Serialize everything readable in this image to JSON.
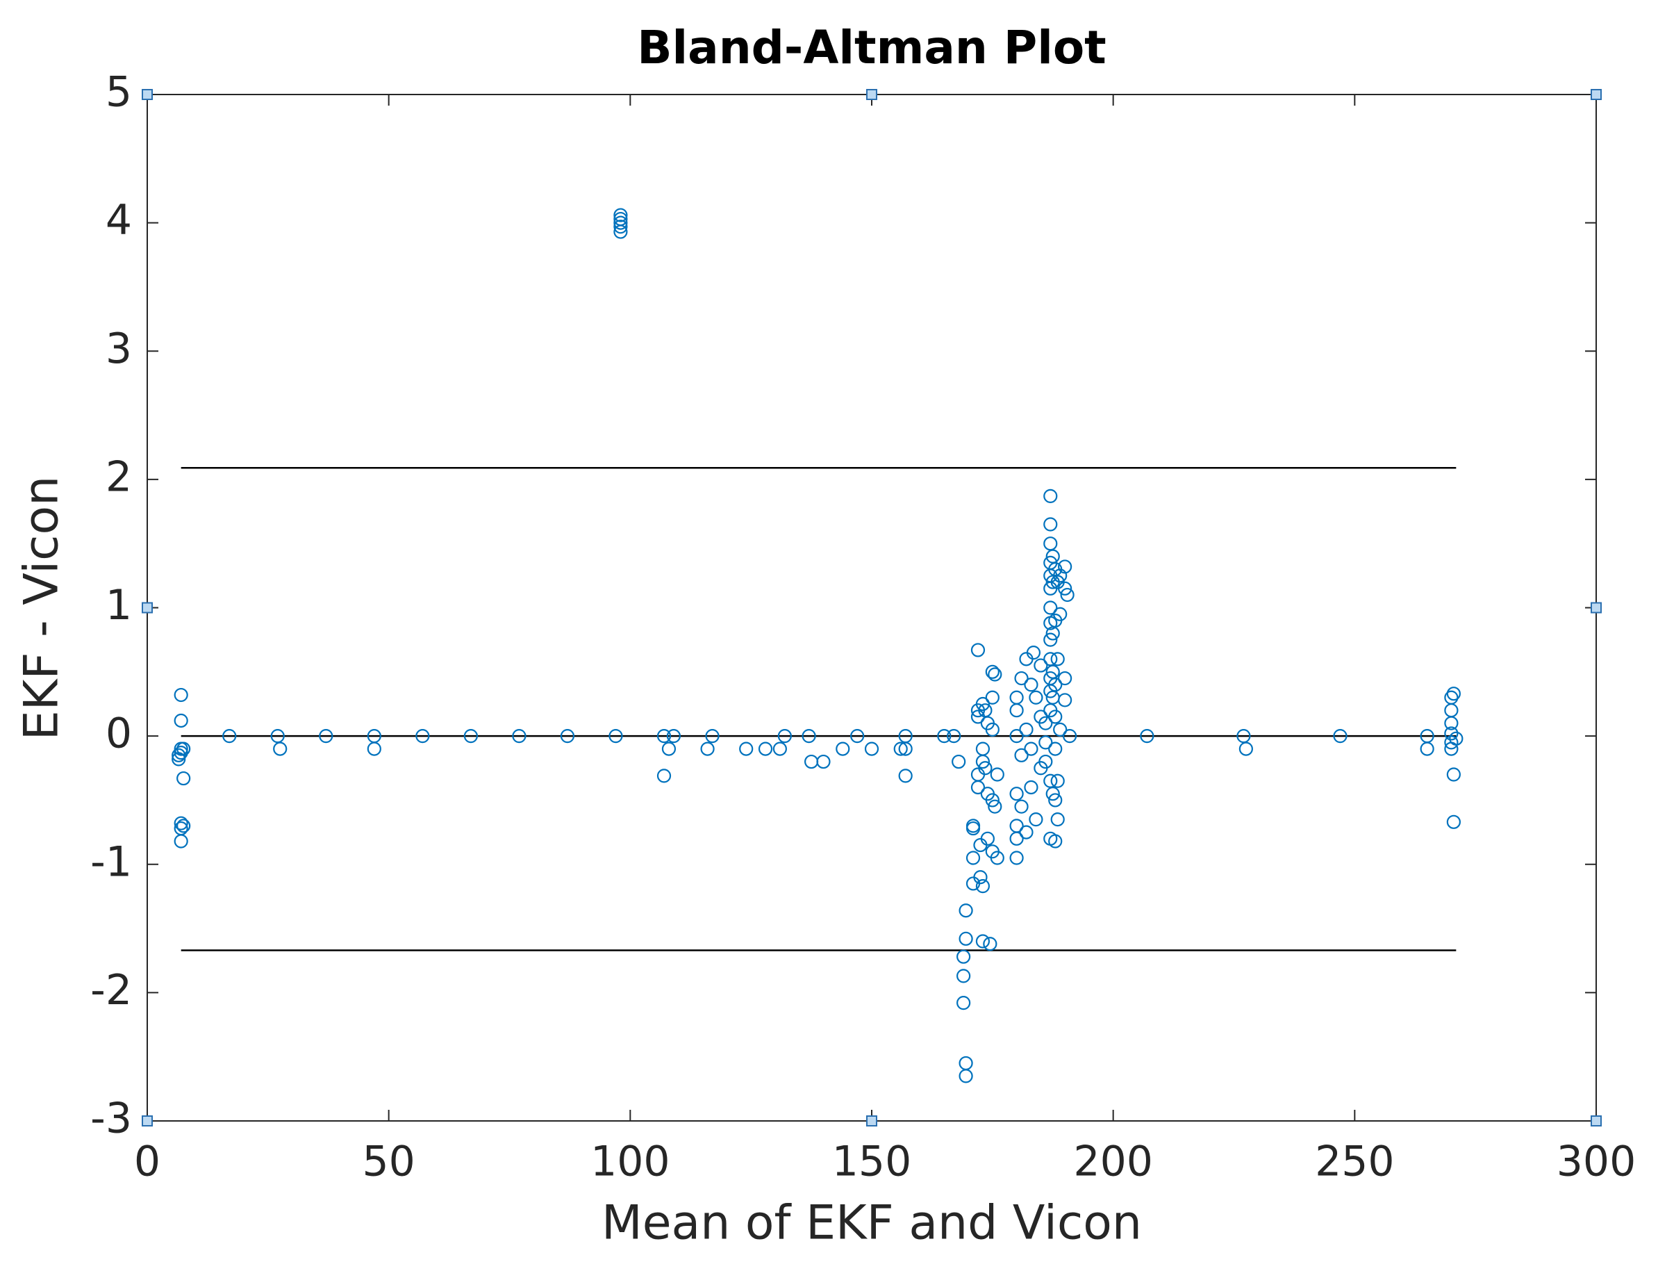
{
  "chart_data": {
    "type": "scatter",
    "title": "Bland-Altman Plot",
    "x_label": "Mean of EKF and Vicon",
    "y_label": "EKF - Vicon",
    "xlim": [
      0,
      300
    ],
    "ylim": [
      -3,
      5
    ],
    "xticks": [
      0,
      50,
      100,
      150,
      200,
      250,
      300
    ],
    "yticks": [
      -3,
      -2,
      -1,
      0,
      1,
      2,
      3,
      4,
      5
    ],
    "color": "#0072bd",
    "x": [
      7,
      7,
      7,
      7,
      6.5,
      6.5,
      7.5,
      7.5,
      7,
      7.5,
      7,
      7,
      17,
      27,
      27.5,
      37,
      47,
      47,
      57,
      67,
      77,
      87,
      97,
      98,
      98,
      98,
      98,
      98,
      107,
      107,
      108,
      109,
      116,
      117,
      124,
      128,
      131,
      132,
      137,
      137.5,
      140,
      144,
      147,
      150,
      156,
      157,
      157,
      157,
      165,
      167,
      168,
      169,
      169,
      169,
      169.5,
      169.5,
      169.5,
      169.5,
      171,
      171,
      171,
      171,
      172,
      172,
      172,
      172,
      172,
      172.5,
      172.5,
      173,
      173,
      173,
      173,
      173,
      173.5,
      173.5,
      174,
      174,
      174,
      174.5,
      175,
      175,
      175,
      175,
      175,
      175.5,
      175.5,
      176,
      176,
      180,
      180,
      180,
      180,
      180,
      180,
      180,
      181,
      181,
      181,
      182,
      182,
      182,
      183,
      183,
      183,
      183.5,
      184,
      184,
      185,
      185,
      185,
      186,
      186,
      186,
      187,
      187,
      187,
      187,
      187,
      187,
      187,
      187,
      187,
      187,
      187,
      187,
      187,
      187,
      187,
      187.5,
      187.5,
      187.5,
      187.5,
      187.5,
      187.5,
      188,
      188,
      188,
      188,
      188,
      188,
      188,
      188.5,
      188.5,
      188.5,
      188.5,
      189,
      189,
      189,
      190,
      190,
      190,
      190,
      190.5,
      191,
      207,
      227,
      227.5,
      247,
      265,
      265,
      270,
      270.5,
      270,
      270,
      270,
      270,
      270,
      270.5,
      270.5,
      271
    ],
    "y": [
      0.32,
      0.12,
      -0.1,
      -0.13,
      -0.15,
      -0.18,
      -0.1,
      -0.33,
      -0.68,
      -0.7,
      -0.72,
      -0.82,
      0,
      0,
      -0.1,
      0,
      0,
      -0.1,
      0,
      0,
      0,
      0,
      0,
      3.93,
      3.97,
      4.0,
      4.03,
      4.06,
      0,
      -0.31,
      -0.1,
      0,
      -0.1,
      0,
      -0.1,
      -0.1,
      -0.1,
      0,
      0,
      -0.2,
      -0.2,
      -0.1,
      0,
      -0.1,
      -0.1,
      0,
      -0.1,
      -0.31,
      0,
      0,
      -0.2,
      -1.72,
      -1.87,
      -2.08,
      -1.58,
      -1.36,
      -2.55,
      -2.65,
      -0.7,
      -0.72,
      -0.95,
      -1.15,
      0.67,
      0.2,
      0.15,
      -0.3,
      -0.4,
      -0.85,
      -1.1,
      -1.6,
      0.25,
      -0.1,
      -0.2,
      -1.17,
      0.2,
      -0.25,
      0.1,
      -0.45,
      -0.8,
      -1.62,
      0.5,
      0.3,
      0.05,
      -0.5,
      -0.9,
      0.48,
      -0.55,
      -0.3,
      -0.95,
      0.3,
      0.2,
      0,
      -0.45,
      -0.7,
      -0.8,
      -0.95,
      0.45,
      -0.15,
      -0.55,
      0.6,
      0.05,
      -0.75,
      0.4,
      -0.1,
      -0.4,
      0.65,
      0.3,
      -0.65,
      0.55,
      0.15,
      -0.25,
      0.1,
      -0.05,
      -0.2,
      1.87,
      1.65,
      1.5,
      1.35,
      1.25,
      1.15,
      1.0,
      0.88,
      0.75,
      0.6,
      0.45,
      0.35,
      0.2,
      -0.35,
      -0.8,
      1.4,
      1.2,
      0.8,
      0.5,
      0.3,
      -0.45,
      1.3,
      0.9,
      0.4,
      0.15,
      -0.1,
      -0.5,
      -0.82,
      1.2,
      0.6,
      -0.35,
      -0.65,
      1.25,
      0.95,
      0.05,
      1.32,
      1.15,
      0.45,
      0.28,
      1.1,
      0,
      0,
      0,
      -0.1,
      0,
      0,
      -0.1,
      0.3,
      0.33,
      0.2,
      0.1,
      0.02,
      -0.05,
      -0.1,
      -0.3,
      -0.67,
      -0.02
    ],
    "reference_lines": [
      {
        "value": 2.09,
        "x": [
          7,
          271
        ]
      },
      {
        "value": 0,
        "x": [
          7,
          271
        ]
      },
      {
        "value": -1.67,
        "x": [
          7,
          271
        ]
      }
    ]
  }
}
